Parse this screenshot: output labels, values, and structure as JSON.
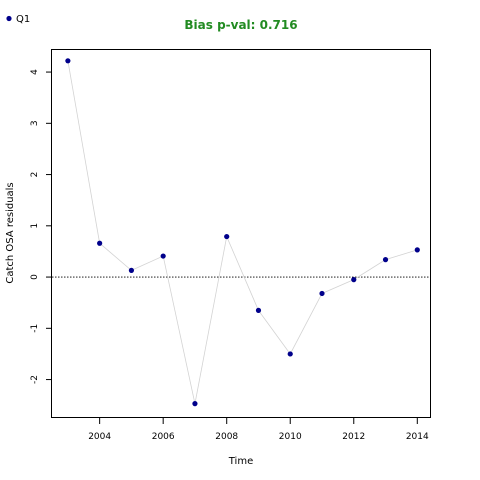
{
  "chart_data": {
    "type": "scatter",
    "title": "Bias p-val: 0.716",
    "title_color": "#228B22",
    "xlabel": "Time",
    "ylabel": "Catch OSA residuals",
    "xlim": [
      2002.5,
      2014.4
    ],
    "ylim": [
      -2.75,
      4.45
    ],
    "x_ticks": [
      2004,
      2006,
      2008,
      2010,
      2012,
      2014
    ],
    "x_tick_labels": [
      "2004",
      "2006",
      "2008",
      "2010",
      "2012",
      "2014"
    ],
    "y_ticks": [
      -2,
      -1,
      0,
      1,
      2,
      3,
      4
    ],
    "y_tick_labels": [
      "-2",
      "-1",
      "0",
      "1",
      "2",
      "3",
      "4"
    ],
    "reference_line": 0,
    "legend_position": "top-left",
    "grid": false,
    "series": [
      {
        "name": "Q1",
        "color": "#00008B",
        "line_color": "#D3D3D3",
        "x": [
          2003,
          2004,
          2005,
          2006,
          2007,
          2008,
          2009,
          2010,
          2011,
          2012,
          2013,
          2014
        ],
        "y": [
          4.22,
          0.66,
          0.13,
          0.41,
          -2.47,
          0.79,
          -0.65,
          -1.5,
          -0.32,
          -0.05,
          0.34,
          0.53
        ]
      }
    ]
  }
}
